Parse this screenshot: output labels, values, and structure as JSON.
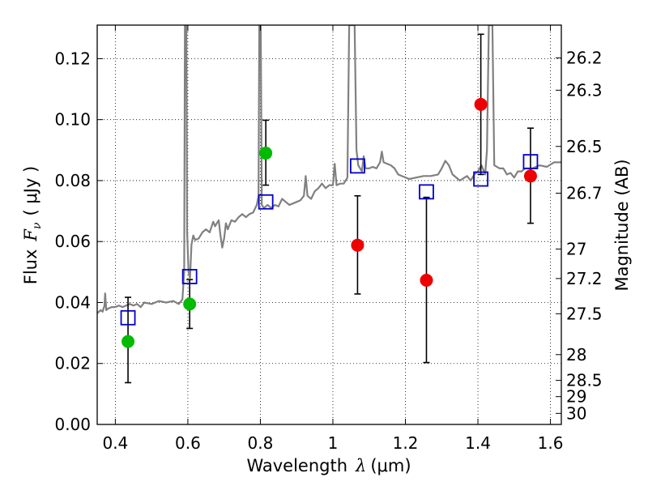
{
  "chart_data": {
    "type": "scatter",
    "xlabel_text": "Wavelength",
    "xlabel_symbol": "λ",
    "xlabel_unit": "(μm)",
    "ylabel_text": "Flux",
    "ylabel_symbol": "F",
    "ylabel_sub": "ν",
    "ylabel_unit": "( μJy )",
    "y2label": "Magnitude (AB)",
    "xlim": [
      0.35,
      1.63
    ],
    "ylim": [
      0.0,
      0.131
    ],
    "grid": true,
    "x_ticks": [
      0.4,
      0.6,
      0.8,
      1.0,
      1.2,
      1.4,
      1.6
    ],
    "x_tick_labels": [
      "0.4",
      "0.6",
      "0.8",
      "1",
      "1.2",
      "1.4",
      "1.6"
    ],
    "y_ticks": [
      0.0,
      0.02,
      0.04,
      0.06,
      0.08,
      0.1,
      0.12
    ],
    "y_tick_labels": [
      "0.00",
      "0.02",
      "0.04",
      "0.06",
      "0.08",
      "0.10",
      "0.12"
    ],
    "mag_ticks": [
      26.2,
      26.3,
      26.5,
      26.7,
      27,
      27.2,
      27.5,
      28,
      28.5,
      29,
      30
    ],
    "mag_tick_labels": [
      "26.2",
      "26.3",
      "26.5",
      "26.7",
      "27",
      "27.2",
      "27.5",
      "28",
      "28.5",
      "29",
      "30"
    ],
    "colors": {
      "spectrum": "#808080",
      "model_box": "#0000cc",
      "green": "#00bb00",
      "red": "#ee0000",
      "errorbar": "#000000"
    },
    "spectrum": [
      [
        0.35,
        0.0365
      ],
      [
        0.36,
        0.0375
      ],
      [
        0.365,
        0.037
      ],
      [
        0.37,
        0.039
      ],
      [
        0.372,
        0.043
      ],
      [
        0.375,
        0.0375
      ],
      [
        0.38,
        0.038
      ],
      [
        0.39,
        0.0385
      ],
      [
        0.4,
        0.0385
      ],
      [
        0.41,
        0.039
      ],
      [
        0.42,
        0.0385
      ],
      [
        0.43,
        0.039
      ],
      [
        0.44,
        0.0395
      ],
      [
        0.45,
        0.039
      ],
      [
        0.46,
        0.0395
      ],
      [
        0.47,
        0.0385
      ],
      [
        0.48,
        0.04
      ],
      [
        0.5,
        0.0395
      ],
      [
        0.52,
        0.0405
      ],
      [
        0.54,
        0.04
      ],
      [
        0.56,
        0.0405
      ],
      [
        0.575,
        0.0395
      ],
      [
        0.585,
        0.041
      ],
      [
        0.59,
        0.05
      ],
      [
        0.592,
        0.131
      ],
      [
        0.596,
        0.131
      ],
      [
        0.598,
        0.063
      ],
      [
        0.602,
        0.05
      ],
      [
        0.606,
        0.048
      ],
      [
        0.61,
        0.059
      ],
      [
        0.615,
        0.062
      ],
      [
        0.62,
        0.0605
      ],
      [
        0.63,
        0.061
      ],
      [
        0.64,
        0.063
      ],
      [
        0.65,
        0.064
      ],
      [
        0.66,
        0.063
      ],
      [
        0.67,
        0.0665
      ],
      [
        0.675,
        0.065
      ],
      [
        0.68,
        0.066
      ],
      [
        0.685,
        0.067
      ],
      [
        0.69,
        0.062
      ],
      [
        0.695,
        0.058
      ],
      [
        0.7,
        0.061
      ],
      [
        0.705,
        0.066
      ],
      [
        0.71,
        0.064
      ],
      [
        0.72,
        0.067
      ],
      [
        0.73,
        0.0665
      ],
      [
        0.74,
        0.068
      ],
      [
        0.75,
        0.069
      ],
      [
        0.76,
        0.068
      ],
      [
        0.77,
        0.069
      ],
      [
        0.78,
        0.0695
      ],
      [
        0.79,
        0.072
      ],
      [
        0.795,
        0.075
      ],
      [
        0.797,
        0.131
      ],
      [
        0.801,
        0.131
      ],
      [
        0.804,
        0.072
      ],
      [
        0.81,
        0.071
      ],
      [
        0.82,
        0.072
      ],
      [
        0.83,
        0.071
      ],
      [
        0.84,
        0.072
      ],
      [
        0.85,
        0.0715
      ],
      [
        0.86,
        0.074
      ],
      [
        0.87,
        0.073
      ],
      [
        0.88,
        0.072
      ],
      [
        0.89,
        0.0725
      ],
      [
        0.9,
        0.073
      ],
      [
        0.91,
        0.0735
      ],
      [
        0.92,
        0.075
      ],
      [
        0.925,
        0.0815
      ],
      [
        0.93,
        0.075
      ],
      [
        0.94,
        0.074
      ],
      [
        0.95,
        0.0765
      ],
      [
        0.96,
        0.0775
      ],
      [
        0.97,
        0.079
      ],
      [
        0.98,
        0.0775
      ],
      [
        0.99,
        0.0785
      ],
      [
        1.0,
        0.0785
      ],
      [
        1.005,
        0.0855
      ],
      [
        1.01,
        0.0785
      ],
      [
        1.02,
        0.079
      ],
      [
        1.03,
        0.079
      ],
      [
        1.04,
        0.081
      ],
      [
        1.045,
        0.131
      ],
      [
        1.06,
        0.131
      ],
      [
        1.065,
        0.09
      ],
      [
        1.07,
        0.085
      ],
      [
        1.08,
        0.083
      ],
      [
        1.085,
        0.088
      ],
      [
        1.09,
        0.084
      ],
      [
        1.1,
        0.084
      ],
      [
        1.11,
        0.0845
      ],
      [
        1.12,
        0.084
      ],
      [
        1.13,
        0.086
      ],
      [
        1.135,
        0.0895
      ],
      [
        1.14,
        0.086
      ],
      [
        1.16,
        0.085
      ],
      [
        1.17,
        0.084
      ],
      [
        1.18,
        0.082
      ],
      [
        1.19,
        0.0815
      ],
      [
        1.21,
        0.0805
      ],
      [
        1.23,
        0.081
      ],
      [
        1.25,
        0.0815
      ],
      [
        1.27,
        0.0815
      ],
      [
        1.29,
        0.082
      ],
      [
        1.3,
        0.084
      ],
      [
        1.31,
        0.0865
      ],
      [
        1.32,
        0.085
      ],
      [
        1.33,
        0.082
      ],
      [
        1.35,
        0.08
      ],
      [
        1.37,
        0.0815
      ],
      [
        1.38,
        0.08
      ],
      [
        1.39,
        0.082
      ],
      [
        1.4,
        0.083
      ],
      [
        1.41,
        0.085
      ],
      [
        1.42,
        0.082
      ],
      [
        1.425,
        0.09
      ],
      [
        1.43,
        0.131
      ],
      [
        1.44,
        0.131
      ],
      [
        1.445,
        0.085
      ],
      [
        1.46,
        0.084
      ],
      [
        1.47,
        0.084
      ],
      [
        1.48,
        0.082
      ],
      [
        1.49,
        0.0825
      ],
      [
        1.5,
        0.081
      ],
      [
        1.51,
        0.083
      ],
      [
        1.52,
        0.083
      ],
      [
        1.53,
        0.084
      ],
      [
        1.55,
        0.084
      ],
      [
        1.57,
        0.085
      ],
      [
        1.59,
        0.0845
      ],
      [
        1.61,
        0.086
      ],
      [
        1.63,
        0.086
      ]
    ],
    "model_points": [
      {
        "x": 0.435,
        "y": 0.035
      },
      {
        "x": 0.605,
        "y": 0.0485
      },
      {
        "x": 0.815,
        "y": 0.073
      },
      {
        "x": 1.068,
        "y": 0.0848
      },
      {
        "x": 1.258,
        "y": 0.0763
      },
      {
        "x": 1.408,
        "y": 0.0805
      },
      {
        "x": 1.545,
        "y": 0.0862
      }
    ],
    "observed_points": [
      {
        "x": 0.435,
        "y": 0.0272,
        "yerr_low": 0.0137,
        "yerr_high": 0.0417,
        "color": "green"
      },
      {
        "x": 0.605,
        "y": 0.0395,
        "yerr_low": 0.0315,
        "yerr_high": 0.0475,
        "color": "green"
      },
      {
        "x": 0.815,
        "y": 0.089,
        "yerr_low": 0.0785,
        "yerr_high": 0.0998,
        "color": "green"
      },
      {
        "x": 1.068,
        "y": 0.0588,
        "yerr_low": 0.0428,
        "yerr_high": 0.075,
        "color": "red"
      },
      {
        "x": 1.258,
        "y": 0.0473,
        "yerr_low": 0.0203,
        "yerr_high": 0.0745,
        "color": "red"
      },
      {
        "x": 1.408,
        "y": 0.105,
        "yerr_low": 0.082,
        "yerr_high": 0.128,
        "color": "red"
      },
      {
        "x": 1.545,
        "y": 0.0815,
        "yerr_low": 0.066,
        "yerr_high": 0.0972,
        "color": "red"
      }
    ]
  }
}
